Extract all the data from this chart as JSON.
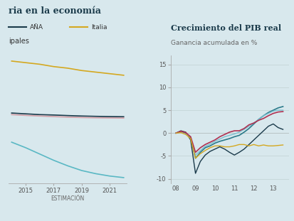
{
  "bg_color": "#d8e8ed",
  "title": "ria en la economía",
  "left_subtitle": "ipales",
  "left_legend": [
    "AÑA",
    "Italia"
  ],
  "left_legend_colors": [
    "#1a3a4a",
    "#d4a820"
  ],
  "left_x": [
    2014,
    2015,
    2016,
    2017,
    2018,
    2019,
    2020,
    2021,
    2022
  ],
  "left_lines": {
    "gold": {
      "color": "#d4a820",
      "values": [
        13.8,
        13.6,
        13.4,
        13.1,
        12.9,
        12.6,
        12.4,
        12.2,
        12.0
      ]
    },
    "dark_navy": {
      "color": "#1a3a4a",
      "values": [
        7.2,
        7.1,
        7.0,
        6.95,
        6.88,
        6.82,
        6.78,
        6.75,
        6.73
      ]
    },
    "pink": {
      "color": "#d4a0a8",
      "values": [
        7.0,
        6.9,
        6.82,
        6.75,
        6.68,
        6.63,
        6.6,
        6.58,
        6.56
      ]
    },
    "teal_light": {
      "color": "#5ab8c4",
      "values": [
        3.5,
        2.8,
        2.0,
        1.2,
        0.5,
        -0.1,
        -0.5,
        -0.8,
        -1.0
      ]
    }
  },
  "left_xlabel": "ESTIMACIÓN",
  "left_xticks": [
    2015,
    2017,
    2019,
    2021
  ],
  "right_title": "Crecimiento del PIB real",
  "right_subtitle": "Ganancia acumulada en %",
  "right_x": [
    8.0,
    8.25,
    8.5,
    8.75,
    9.0,
    9.25,
    9.5,
    9.75,
    10.0,
    10.25,
    10.5,
    10.75,
    11.0,
    11.25,
    11.5,
    11.75,
    12.0,
    12.25,
    12.5,
    12.75,
    13.0,
    13.25,
    13.5
  ],
  "right_lines": {
    "navy": {
      "color": "#1a3a4a",
      "values": [
        0.0,
        0.5,
        0.2,
        -1.5,
        -8.8,
        -6.2,
        -4.8,
        -4.0,
        -3.5,
        -3.0,
        -3.5,
        -4.2,
        -4.8,
        -4.2,
        -3.5,
        -2.5,
        -1.5,
        -0.5,
        0.5,
        1.5,
        2.0,
        1.2,
        0.8
      ]
    },
    "teal_dark": {
      "color": "#2a7a8a",
      "values": [
        0.0,
        0.3,
        0.0,
        -1.0,
        -5.5,
        -4.2,
        -3.2,
        -2.8,
        -2.2,
        -1.8,
        -1.5,
        -1.2,
        -0.8,
        -0.5,
        0.2,
        1.0,
        2.0,
        3.0,
        3.8,
        4.5,
        5.0,
        5.5,
        5.8
      ]
    },
    "teal_light": {
      "color": "#7abfcf",
      "values": [
        0.0,
        0.2,
        -0.2,
        -0.8,
        -4.8,
        -3.8,
        -2.9,
        -2.4,
        -1.8,
        -1.3,
        -0.8,
        -0.5,
        -0.2,
        0.2,
        0.8,
        1.5,
        2.2,
        3.0,
        3.8,
        4.3,
        4.8,
        5.0,
        5.0
      ]
    },
    "crimson": {
      "color": "#b03050",
      "values": [
        0.0,
        0.4,
        0.1,
        -0.8,
        -4.2,
        -3.2,
        -2.5,
        -2.0,
        -1.5,
        -0.8,
        -0.3,
        0.2,
        0.5,
        0.5,
        1.0,
        1.8,
        2.2,
        2.8,
        3.2,
        3.8,
        4.3,
        4.6,
        4.7
      ]
    },
    "gold": {
      "color": "#d4a820",
      "values": [
        0.0,
        0.1,
        -0.3,
        -1.2,
        -5.5,
        -4.5,
        -3.8,
        -3.2,
        -2.8,
        -2.8,
        -3.0,
        -3.0,
        -2.8,
        -2.5,
        -2.5,
        -2.8,
        -2.5,
        -2.8,
        -2.6,
        -2.8,
        -2.8,
        -2.7,
        -2.6
      ]
    }
  },
  "right_ylim": [
    -11,
    17
  ],
  "right_yticks": [
    -10,
    -5,
    0,
    5,
    10,
    15
  ],
  "right_xticks_pos": [
    8,
    9,
    10,
    11,
    12,
    13
  ],
  "right_xticks_labels": [
    "08",
    "09",
    "10",
    "11",
    "12",
    "13"
  ]
}
